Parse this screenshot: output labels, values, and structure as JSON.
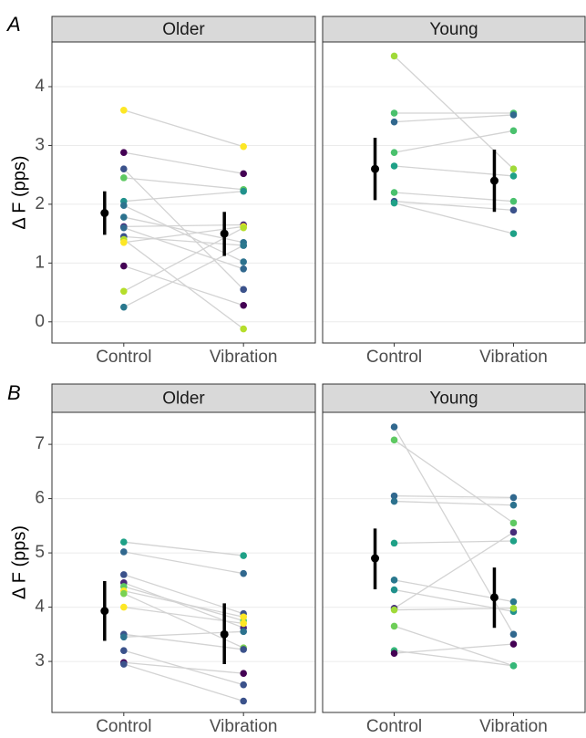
{
  "panel_labels": [
    "A",
    "B"
  ],
  "chart_data": [
    {
      "type": "paired",
      "title": "Older",
      "ylabel": "Δ F (pps)",
      "categories": [
        "Control",
        "Vibration"
      ],
      "ylim": [
        -0.36,
        4.76
      ],
      "yticks": [
        0,
        1,
        2,
        3,
        4
      ],
      "grid": true,
      "series": [
        {
          "color": "#fde725",
          "values": [
            3.6,
            2.98
          ]
        },
        {
          "color": "#440154",
          "values": [
            2.88,
            2.52
          ]
        },
        {
          "color": "#3b528b",
          "values": [
            2.6,
            0.55
          ]
        },
        {
          "color": "#5ec962",
          "values": [
            2.45,
            2.25
          ]
        },
        {
          "color": "#21918c",
          "values": [
            2.05,
            2.22
          ]
        },
        {
          "color": "#2c728e",
          "values": [
            1.98,
            1.02
          ]
        },
        {
          "color": "#2c728e",
          "values": [
            1.78,
            1.35
          ]
        },
        {
          "color": "#482878",
          "values": [
            1.62,
            1.65
          ]
        },
        {
          "color": "#31688e",
          "values": [
            1.6,
            0.9
          ]
        },
        {
          "color": "#3b528b",
          "values": [
            1.45,
            1.3
          ]
        },
        {
          "color": "#b5de2b",
          "values": [
            1.4,
            -0.12
          ]
        },
        {
          "color": "#fde725",
          "values": [
            1.35,
            1.62
          ]
        },
        {
          "color": "#440154",
          "values": [
            0.95,
            0.28
          ]
        },
        {
          "color": "#b5de2b",
          "values": [
            0.52,
            1.6
          ]
        },
        {
          "color": "#2a788e",
          "values": [
            0.25,
            1.3
          ]
        }
      ],
      "summary": {
        "color": "#000000",
        "values": [
          1.85,
          1.5
        ],
        "lower": [
          1.48,
          1.12
        ],
        "upper": [
          2.22,
          1.87
        ]
      }
    },
    {
      "type": "paired",
      "title": "Young",
      "categories": [
        "Control",
        "Vibration"
      ],
      "ylim": [
        -0.36,
        4.76
      ],
      "yticks": [
        0,
        1,
        2,
        3,
        4
      ],
      "grid": true,
      "series": [
        {
          "color": "#a0da39",
          "values": [
            4.52,
            2.6
          ]
        },
        {
          "color": "#4ac16d",
          "values": [
            3.55,
            3.55
          ]
        },
        {
          "color": "#31688e",
          "values": [
            3.4,
            3.52
          ]
        },
        {
          "color": "#4ac16d",
          "values": [
            2.88,
            3.25
          ]
        },
        {
          "color": "#1fa187",
          "values": [
            2.65,
            2.48
          ]
        },
        {
          "color": "#4ac16d",
          "values": [
            2.2,
            2.05
          ]
        },
        {
          "color": "#3b528b",
          "values": [
            2.05,
            1.9
          ]
        },
        {
          "color": "#1fa187",
          "values": [
            2.02,
            1.5
          ]
        }
      ],
      "summary": {
        "color": "#000000",
        "values": [
          2.6,
          2.4
        ],
        "lower": [
          2.07,
          1.87
        ],
        "upper": [
          3.13,
          2.93
        ]
      }
    },
    {
      "type": "paired",
      "title": "Older",
      "ylabel": "Δ F (pps)",
      "categories": [
        "Control",
        "Vibration"
      ],
      "ylim": [
        2.06,
        7.59
      ],
      "yticks": [
        3,
        4,
        5,
        6,
        7
      ],
      "grid": true,
      "series": [
        {
          "color": "#1fa187",
          "values": [
            5.2,
            4.95
          ]
        },
        {
          "color": "#31688e",
          "values": [
            5.02,
            4.62
          ]
        },
        {
          "color": "#3b528b",
          "values": [
            4.6,
            3.88
          ]
        },
        {
          "color": "#482878",
          "values": [
            4.45,
            3.62
          ]
        },
        {
          "color": "#5ec962",
          "values": [
            4.38,
            3.75
          ]
        },
        {
          "color": "#fde725",
          "values": [
            4.3,
            3.82
          ]
        },
        {
          "color": "#7ad151",
          "values": [
            4.25,
            3.25
          ]
        },
        {
          "color": "#fde725",
          "values": [
            4.0,
            3.7
          ]
        },
        {
          "color": "#3b528b",
          "values": [
            3.5,
            3.22
          ]
        },
        {
          "color": "#2c728e",
          "values": [
            3.45,
            3.55
          ]
        },
        {
          "color": "#3b528b",
          "values": [
            3.2,
            2.57
          ]
        },
        {
          "color": "#440154",
          "values": [
            2.98,
            2.78
          ]
        },
        {
          "color": "#3b528b",
          "values": [
            2.95,
            2.27
          ]
        }
      ],
      "summary": {
        "color": "#000000",
        "values": [
          3.93,
          3.5
        ],
        "lower": [
          3.38,
          2.95
        ],
        "upper": [
          4.48,
          4.07
        ]
      }
    },
    {
      "type": "paired",
      "title": "Young",
      "categories": [
        "Control",
        "Vibration"
      ],
      "ylim": [
        2.06,
        7.59
      ],
      "yticks": [
        3,
        4,
        5,
        6,
        7
      ],
      "grid": true,
      "series": [
        {
          "color": "#31688e",
          "values": [
            7.32,
            3.5
          ]
        },
        {
          "color": "#5ec962",
          "values": [
            7.08,
            5.55
          ]
        },
        {
          "color": "#31688e",
          "values": [
            6.05,
            6.02
          ]
        },
        {
          "color": "#2c728e",
          "values": [
            5.95,
            5.88
          ]
        },
        {
          "color": "#1fa187",
          "values": [
            5.18,
            5.22
          ]
        },
        {
          "color": "#2a788e",
          "values": [
            4.5,
            4.1
          ]
        },
        {
          "color": "#21918c",
          "values": [
            4.32,
            3.92
          ]
        },
        {
          "color": "#472d7b",
          "values": [
            3.98,
            5.38
          ]
        },
        {
          "color": "#a0da39",
          "values": [
            3.95,
            3.98
          ]
        },
        {
          "color": "#6ece58",
          "values": [
            3.65,
            2.92
          ]
        },
        {
          "color": "#35b779",
          "values": [
            3.2,
            2.92
          ]
        },
        {
          "color": "#440154",
          "values": [
            3.15,
            3.32
          ]
        }
      ],
      "summary": {
        "color": "#000000",
        "values": [
          4.9,
          4.18
        ],
        "lower": [
          4.33,
          3.62
        ],
        "upper": [
          5.45,
          4.73
        ]
      }
    }
  ]
}
